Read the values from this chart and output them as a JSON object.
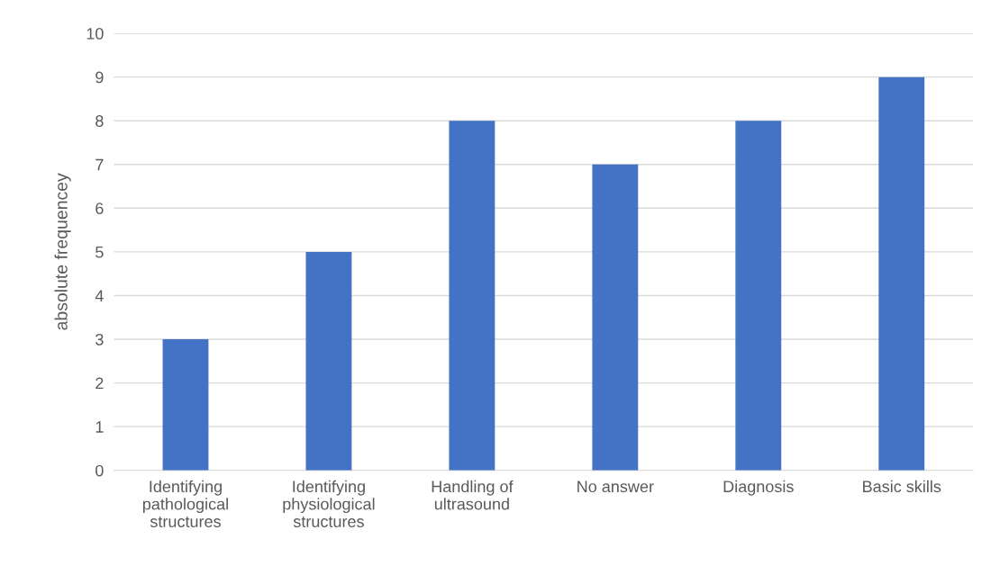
{
  "chart_data": {
    "type": "bar",
    "ylabel": "absolute frequencey",
    "categories": [
      "Identifying\npathological\nstructures",
      "Identifying\nphysiological\nstructures",
      "Handling of\nultrasound",
      "No answer",
      "Diagnosis",
      "Basic skills"
    ],
    "values": [
      3,
      5,
      8,
      7,
      8,
      9
    ],
    "color": "#4472c4",
    "ylim": [
      0,
      10
    ],
    "yticks": [
      0,
      1,
      2,
      3,
      4,
      5,
      6,
      7,
      8,
      9,
      10
    ],
    "grid": "y",
    "legend": false
  }
}
